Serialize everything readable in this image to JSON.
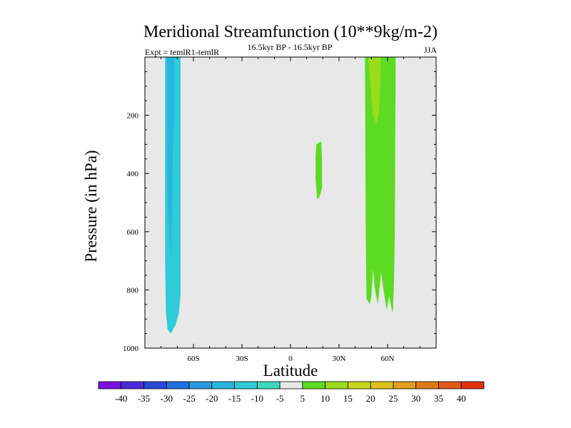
{
  "chart_data": {
    "type": "contour",
    "title": "Meridional Streamfunction (10**9kg/m-2)",
    "expt_label": "Expt = temlR1-temlR",
    "period_label": "16.5kyr BP - 16.5kyr BP",
    "season": "JJA",
    "xlabel": "Latitude",
    "ylabel": "Pressure (in hPa)",
    "xlim": [
      -90,
      90
    ],
    "ylim": [
      1000,
      0
    ],
    "x_ticks": [
      {
        "value": -60,
        "label": "60S"
      },
      {
        "value": -30,
        "label": "30S"
      },
      {
        "value": 0,
        "label": "0"
      },
      {
        "value": 30,
        "label": "30N"
      },
      {
        "value": 60,
        "label": "60N"
      }
    ],
    "y_ticks": [
      {
        "value": 200,
        "label": "200"
      },
      {
        "value": 400,
        "label": "400"
      },
      {
        "value": 600,
        "label": "600"
      },
      {
        "value": 800,
        "label": "800"
      },
      {
        "value": 1000,
        "label": "1000"
      }
    ],
    "colorbar": {
      "levels": [
        -40,
        -35,
        -30,
        -25,
        -20,
        -15,
        -10,
        -5,
        5,
        10,
        15,
        20,
        25,
        30,
        35,
        40
      ],
      "labels": [
        "-40",
        "-35",
        "-30",
        "-25",
        "-20",
        "-15",
        "-10",
        "-5",
        "5",
        "10",
        "15",
        "20",
        "25",
        "30",
        "35",
        "40"
      ],
      "colors": [
        "#7a10dc",
        "#4b2bd8",
        "#2748d8",
        "#1f72e0",
        "#2a9ae0",
        "#28b6e0",
        "#30cad8",
        "#3ad8b8",
        "#e8e8e8",
        "#5ddb22",
        "#9adb1a",
        "#c7d61a",
        "#dcc21a",
        "#e0a018",
        "#e07a18",
        "#e05a18",
        "#e03010"
      ]
    },
    "regions": [
      {
        "name": "southern-cell",
        "class": "-10 to -5",
        "color": "#30cad8",
        "polygon": [
          [
            -77.5,
            0
          ],
          [
            -68,
            0
          ],
          [
            -68,
            820
          ],
          [
            -69,
            880
          ],
          [
            -71,
            920
          ],
          [
            -74,
            950
          ],
          [
            -76,
            935
          ],
          [
            -77,
            880
          ],
          [
            -77.5,
            700
          ]
        ]
      },
      {
        "name": "southern-cell-core",
        "class": "-15 to -10",
        "color": "#28b6e0",
        "polygon": [
          [
            -76.5,
            0
          ],
          [
            -72,
            0
          ],
          [
            -72,
            200
          ],
          [
            -73,
            400
          ],
          [
            -73.5,
            640
          ],
          [
            -74,
            680
          ],
          [
            -75.5,
            560
          ],
          [
            -76.5,
            400
          ]
        ]
      },
      {
        "name": "tropical-cell",
        "class": "5 to 10",
        "color": "#5ddb22",
        "polygon": [
          [
            16,
            300
          ],
          [
            19,
            290
          ],
          [
            19.5,
            360
          ],
          [
            19.5,
            450
          ],
          [
            18,
            480
          ],
          [
            16.5,
            490
          ],
          [
            15.5,
            420
          ],
          [
            15.5,
            340
          ]
        ]
      },
      {
        "name": "northern-cell",
        "class": "5 to 10",
        "color": "#5ddb22",
        "polygon": [
          [
            46,
            0
          ],
          [
            65,
            0
          ],
          [
            64.5,
            600
          ],
          [
            64,
            760
          ],
          [
            63.5,
            860
          ],
          [
            63,
            880
          ],
          [
            61,
            820
          ],
          [
            59.5,
            870
          ],
          [
            58,
            820
          ],
          [
            56,
            740
          ],
          [
            54,
            850
          ],
          [
            52,
            790
          ],
          [
            51,
            730
          ],
          [
            50,
            820
          ],
          [
            49,
            850
          ],
          [
            47,
            830
          ],
          [
            46.5,
            600
          ]
        ]
      },
      {
        "name": "northern-cell-core",
        "class": "10 to 15",
        "color": "#9adb1a",
        "polygon": [
          [
            48,
            0
          ],
          [
            56,
            0
          ],
          [
            55.5,
            100
          ],
          [
            54.5,
            200
          ],
          [
            53,
            230
          ],
          [
            51,
            200
          ],
          [
            49.5,
            100
          ]
        ]
      }
    ]
  }
}
